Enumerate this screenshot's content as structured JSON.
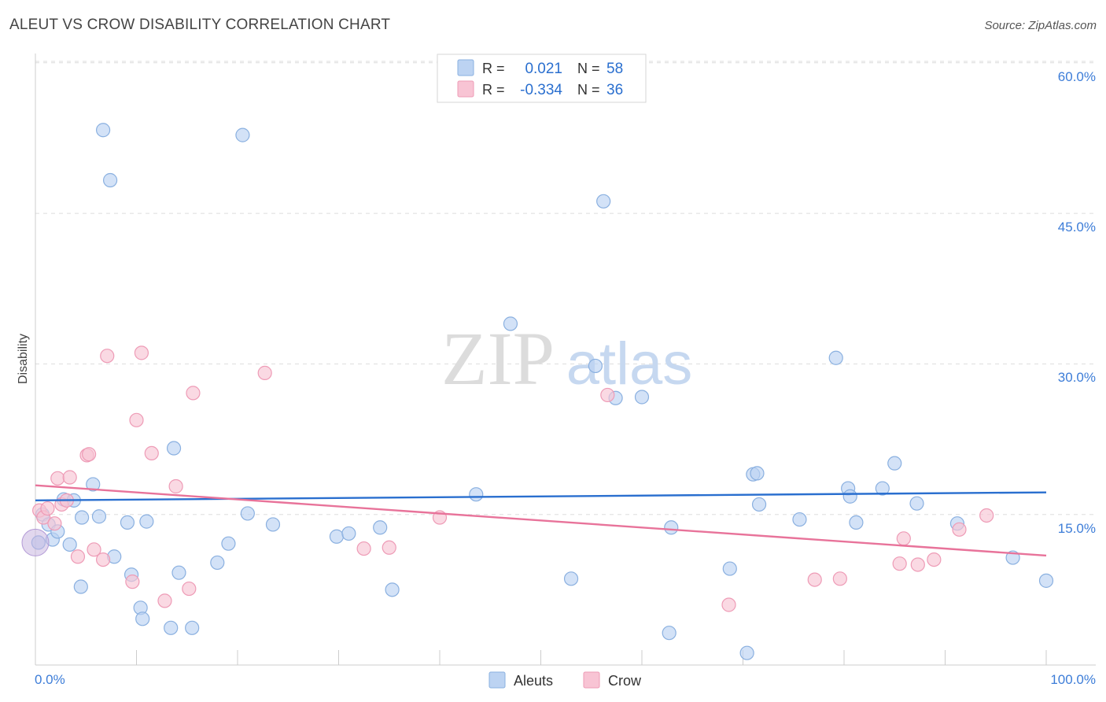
{
  "chart_data": {
    "type": "scatter",
    "title": "ALEUT VS CROW DISABILITY CORRELATION CHART",
    "source": "Source: ZipAtlas.com",
    "ylabel": "Disability",
    "xlabel": "",
    "xlim": [
      0,
      100
    ],
    "ylim": [
      0,
      63
    ],
    "x_tick_labels": [
      "0.0%",
      "100.0%"
    ],
    "y_ticks": [
      15,
      30,
      45,
      60
    ],
    "y_tick_labels": [
      "15.0%",
      "30.0%",
      "45.0%",
      "60.0%"
    ],
    "watermark": {
      "zip": "ZIP",
      "atlas": "atlas"
    },
    "colors": {
      "aleut_fill": "#bcd3f2",
      "aleut_stroke": "#8ab0e0",
      "aleut_line": "#2a6fcf",
      "crow_fill": "#f8c4d4",
      "crow_stroke": "#ee9bb6",
      "crow_line": "#e8739a",
      "value_text": "#2a6fcf",
      "axis_text": "#3d7dd8"
    },
    "legend_box": [
      {
        "r_label": "R =",
        "r_value": "0.021",
        "n_label": "N =",
        "n_value": "58"
      },
      {
        "r_label": "R =",
        "r_value": "-0.334",
        "n_label": "N =",
        "n_value": "36"
      }
    ],
    "series": [
      {
        "name": "Aleuts",
        "trend": [
          [
            0,
            16.4
          ],
          [
            100,
            17.2
          ]
        ],
        "points": [
          [
            0.3,
            12.2
          ],
          [
            0.7,
            15
          ],
          [
            1.3,
            14
          ],
          [
            1.7,
            12.5
          ],
          [
            2.2,
            13.3
          ],
          [
            2.8,
            16.5
          ],
          [
            3.4,
            12
          ],
          [
            3.8,
            16.4
          ],
          [
            4.5,
            7.8
          ],
          [
            4.6,
            14.7
          ],
          [
            5.7,
            18
          ],
          [
            6.3,
            14.8
          ],
          [
            6.7,
            53.3
          ],
          [
            7.4,
            48.3
          ],
          [
            7.8,
            10.8
          ],
          [
            9.1,
            14.2
          ],
          [
            9.5,
            9
          ],
          [
            10.4,
            5.7
          ],
          [
            10.6,
            4.6
          ],
          [
            11,
            14.3
          ],
          [
            13.4,
            3.7
          ],
          [
            13.7,
            21.6
          ],
          [
            14.2,
            9.2
          ],
          [
            15.5,
            3.7
          ],
          [
            18,
            10.2
          ],
          [
            19.1,
            12.1
          ],
          [
            20.5,
            52.8
          ],
          [
            21,
            15.1
          ],
          [
            23.5,
            14
          ],
          [
            29.8,
            12.8
          ],
          [
            31,
            13.1
          ],
          [
            34.1,
            13.7
          ],
          [
            35.3,
            7.5
          ],
          [
            43.6,
            17
          ],
          [
            47,
            34
          ],
          [
            53,
            8.6
          ],
          [
            55.4,
            29.8
          ],
          [
            56.2,
            46.2
          ],
          [
            57.4,
            26.6
          ],
          [
            60,
            26.7
          ],
          [
            62.7,
            3.2
          ],
          [
            62.9,
            13.7
          ],
          [
            68.7,
            9.6
          ],
          [
            70.4,
            1.2
          ],
          [
            71,
            19
          ],
          [
            71.4,
            19.1
          ],
          [
            71.6,
            16
          ],
          [
            75.6,
            14.5
          ],
          [
            79.2,
            30.6
          ],
          [
            80.4,
            17.6
          ],
          [
            80.6,
            16.8
          ],
          [
            81.2,
            14.2
          ],
          [
            83.8,
            17.6
          ],
          [
            85,
            20.1
          ],
          [
            87.2,
            16.1
          ],
          [
            91.2,
            14.1
          ],
          [
            96.7,
            10.7
          ],
          [
            100,
            8.4
          ]
        ]
      },
      {
        "name": "Crow",
        "trend": [
          [
            0,
            17.9
          ],
          [
            100,
            10.9
          ]
        ],
        "points": [
          [
            0.4,
            15.4
          ],
          [
            0.8,
            14.7
          ],
          [
            1.2,
            15.6
          ],
          [
            1.9,
            14.1
          ],
          [
            2.2,
            18.6
          ],
          [
            2.6,
            16
          ],
          [
            3.1,
            16.4
          ],
          [
            3.4,
            18.7
          ],
          [
            4.2,
            10.8
          ],
          [
            5.1,
            20.9
          ],
          [
            5.3,
            21
          ],
          [
            5.8,
            11.5
          ],
          [
            6.7,
            10.5
          ],
          [
            7.1,
            30.8
          ],
          [
            9.6,
            8.3
          ],
          [
            10,
            24.4
          ],
          [
            10.5,
            31.1
          ],
          [
            11.5,
            21.1
          ],
          [
            12.8,
            6.4
          ],
          [
            13.9,
            17.8
          ],
          [
            15.2,
            7.6
          ],
          [
            15.6,
            27.1
          ],
          [
            22.7,
            29.1
          ],
          [
            32.5,
            11.6
          ],
          [
            35,
            11.7
          ],
          [
            40,
            14.7
          ],
          [
            56.6,
            26.9
          ],
          [
            68.6,
            6
          ],
          [
            77.1,
            8.5
          ],
          [
            79.6,
            8.6
          ],
          [
            85.5,
            10.1
          ],
          [
            85.9,
            12.6
          ],
          [
            87.3,
            10
          ],
          [
            88.9,
            10.5
          ],
          [
            91.4,
            13.5
          ],
          [
            94.1,
            14.9
          ]
        ]
      }
    ],
    "legend_bottom": [
      "Aleuts",
      "Crow"
    ]
  }
}
